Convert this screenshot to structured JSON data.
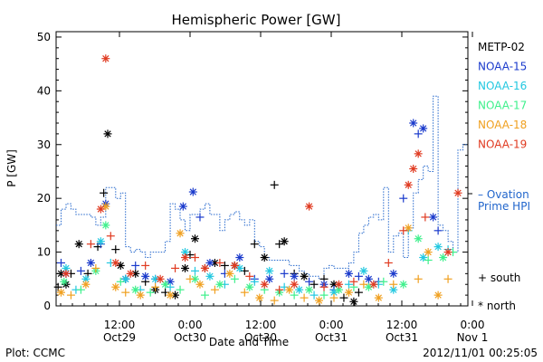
{
  "chart_data": {
    "type": "scatter",
    "title": "Hemispheric Power [GW]",
    "xlabel": "Date and Time",
    "ylabel": "P [GW]",
    "xlim_hours": [
      -2,
      25
    ],
    "ylim": [
      0,
      51
    ],
    "y_ticks": [
      0,
      10,
      20,
      30,
      40,
      50
    ],
    "x_ticks": [
      {
        "line1": "12:00",
        "line2": "Oct29"
      },
      {
        "line1": "0:00",
        "line2": "Oct30"
      },
      {
        "line1": "12:00",
        "line2": "Oct30"
      },
      {
        "line1": "0:00",
        "line2": "Oct31"
      },
      {
        "line1": "12:00",
        "line2": "Oct31"
      },
      {
        "line1": "0:00",
        "line2": "Nov 1"
      }
    ],
    "legend": {
      "placement": "right",
      "items": [
        {
          "name": "METP-02",
          "color": "#000000"
        },
        {
          "name": "NOAA-15",
          "color": "#1a3acc"
        },
        {
          "name": "NOAA-16",
          "color": "#22c8e0"
        },
        {
          "name": "NOAA-17",
          "color": "#3ef08c"
        },
        {
          "name": "NOAA-18",
          "color": "#f0a020"
        },
        {
          "name": "NOAA-19",
          "color": "#e03a20"
        }
      ],
      "ovation_label_1": "– Ovation",
      "ovation_label_2": "Prime HPI",
      "ovation_color": "#2266cc",
      "marker_south": "+ south",
      "marker_north": "* north"
    },
    "footer_left": "Plot: CCMC",
    "footer_right": "2012/11/01 00:25:05",
    "ovation_step": [
      [
        -2,
        15
      ],
      [
        -1.5,
        18
      ],
      [
        -1,
        19
      ],
      [
        -0.5,
        18
      ],
      [
        0,
        17
      ],
      [
        0.5,
        17
      ],
      [
        1,
        17
      ],
      [
        1.5,
        16.5
      ],
      [
        2,
        15
      ],
      [
        2.5,
        16.5
      ],
      [
        3,
        22
      ],
      [
        3.5,
        22
      ],
      [
        4,
        20
      ],
      [
        4.5,
        21
      ],
      [
        5,
        11
      ],
      [
        5.5,
        10
      ],
      [
        6,
        10.5
      ],
      [
        6.5,
        10
      ],
      [
        7,
        9
      ],
      [
        7.5,
        10
      ],
      [
        8,
        10
      ],
      [
        8.5,
        10
      ],
      [
        9,
        12
      ],
      [
        9.5,
        19
      ],
      [
        10,
        18
      ],
      [
        10.5,
        16
      ],
      [
        11,
        14
      ],
      [
        11.5,
        17
      ],
      [
        12,
        17
      ],
      [
        12.5,
        18
      ],
      [
        13,
        19
      ],
      [
        13.5,
        17
      ],
      [
        14,
        17
      ],
      [
        14.5,
        14
      ],
      [
        15,
        16
      ],
      [
        15.5,
        17
      ],
      [
        16,
        17.5
      ],
      [
        16.5,
        16
      ],
      [
        17,
        15
      ],
      [
        17.5,
        16
      ],
      [
        18,
        12
      ],
      [
        18.5,
        11
      ],
      [
        19,
        9
      ],
      [
        19.5,
        8.5
      ],
      [
        20,
        8.5
      ],
      [
        20.5,
        8.5
      ],
      [
        21,
        8.5
      ],
      [
        21.5,
        7.5
      ],
      [
        22,
        7.5
      ],
      [
        22.5,
        6.5
      ],
      [
        23,
        6
      ],
      [
        23.5,
        5.5
      ],
      [
        24,
        5.5
      ],
      [
        24.5,
        5
      ],
      [
        25,
        7
      ],
      [
        25.5,
        7.5
      ],
      [
        26,
        7
      ],
      [
        26.5,
        7
      ],
      [
        27,
        7
      ],
      [
        27.5,
        8
      ],
      [
        28,
        10
      ],
      [
        28.5,
        13.5
      ],
      [
        29,
        15
      ],
      [
        29.5,
        16.5
      ],
      [
        30,
        17
      ],
      [
        30.5,
        16
      ],
      [
        31,
        22
      ],
      [
        31.5,
        10
      ],
      [
        32,
        13
      ],
      [
        32.5,
        13.5
      ],
      [
        33,
        9
      ],
      [
        33.5,
        14.5
      ],
      [
        34,
        21
      ],
      [
        34.5,
        23.5
      ],
      [
        35,
        26
      ],
      [
        35.5,
        25
      ],
      [
        36,
        39
      ],
      [
        36.5,
        15
      ],
      [
        37,
        14
      ],
      [
        37.5,
        12
      ],
      [
        38,
        10
      ],
      [
        38.5,
        29
      ],
      [
        39,
        30
      ]
    ],
    "series": [
      {
        "name": "METP-02",
        "color": "#000000",
        "points": [
          [
            -1.8,
            3.5,
            "s"
          ],
          [
            -1.5,
            6,
            "n"
          ],
          [
            -1,
            4,
            "n"
          ],
          [
            -0.5,
            6,
            "s"
          ],
          [
            0.3,
            11.5,
            "n"
          ],
          [
            1.2,
            6,
            "s"
          ],
          [
            2.2,
            11,
            "s"
          ],
          [
            2.8,
            21,
            "s"
          ],
          [
            3.2,
            32,
            "n"
          ],
          [
            4,
            10.5,
            "s"
          ],
          [
            4.5,
            7.5,
            "n"
          ],
          [
            5,
            5,
            "s"
          ],
          [
            6,
            6,
            "n"
          ],
          [
            7,
            4.5,
            "s"
          ],
          [
            8,
            3,
            "n"
          ],
          [
            9,
            2.5,
            "s"
          ],
          [
            10,
            2,
            "n"
          ],
          [
            11,
            7,
            "n"
          ],
          [
            11.5,
            9.5,
            "s"
          ],
          [
            12,
            12.5,
            "n"
          ],
          [
            13,
            7,
            "s"
          ],
          [
            14,
            8,
            "n"
          ],
          [
            15,
            7.5,
            "s"
          ],
          [
            16,
            7.5,
            "n"
          ],
          [
            17,
            6.5,
            "s"
          ],
          [
            18,
            11.5,
            "s"
          ],
          [
            19,
            9,
            "n"
          ],
          [
            20,
            22.5,
            "s"
          ],
          [
            20.5,
            11.5,
            "s"
          ],
          [
            21,
            12,
            "n"
          ],
          [
            22,
            6,
            "s"
          ],
          [
            23,
            5.5,
            "n"
          ],
          [
            24,
            4,
            "s"
          ],
          [
            25,
            5,
            "s"
          ],
          [
            26,
            4,
            "n"
          ],
          [
            27,
            1.5,
            "s"
          ],
          [
            28,
            0.8,
            "n"
          ],
          [
            28.5,
            2.5,
            "s"
          ]
        ]
      },
      {
        "name": "NOAA-15",
        "color": "#1a3acc",
        "points": [
          [
            -1.5,
            8,
            "s"
          ],
          [
            -1,
            6,
            "n"
          ],
          [
            0.5,
            6.5,
            "s"
          ],
          [
            1.5,
            8,
            "n"
          ],
          [
            2.5,
            11.5,
            "s"
          ],
          [
            3,
            19,
            "n"
          ],
          [
            5,
            5,
            "n"
          ],
          [
            6,
            7.5,
            "s"
          ],
          [
            7,
            5.5,
            "n"
          ],
          [
            8,
            5,
            "s"
          ],
          [
            9.5,
            4.5,
            "n"
          ],
          [
            10.8,
            18.5,
            "n"
          ],
          [
            11.8,
            21.2,
            "n"
          ],
          [
            12.5,
            16.5,
            "s"
          ],
          [
            13.5,
            8,
            "n"
          ],
          [
            15,
            6,
            "s"
          ],
          [
            16.5,
            9,
            "n"
          ],
          [
            18,
            5,
            "s"
          ],
          [
            19.5,
            5,
            "n"
          ],
          [
            21,
            6,
            "s"
          ],
          [
            22,
            5.5,
            "n"
          ],
          [
            23.5,
            4.5,
            "s"
          ],
          [
            25,
            4,
            "n"
          ],
          [
            26,
            3,
            "s"
          ],
          [
            27.5,
            6,
            "n"
          ],
          [
            28.5,
            5.5,
            "s"
          ],
          [
            29.5,
            5,
            "n"
          ],
          [
            30.5,
            4.5,
            "s"
          ],
          [
            32,
            6,
            "n"
          ],
          [
            33,
            20,
            "s"
          ],
          [
            34,
            34,
            "n"
          ],
          [
            34.5,
            32,
            "s"
          ],
          [
            35,
            33,
            "n"
          ],
          [
            36,
            16.5,
            "n"
          ],
          [
            36.5,
            14,
            "s"
          ]
        ]
      },
      {
        "name": "NOAA-16",
        "color": "#22c8e0",
        "points": [
          [
            -1,
            7,
            "n"
          ],
          [
            0,
            3,
            "s"
          ],
          [
            1,
            5,
            "n"
          ],
          [
            2.5,
            12,
            "n"
          ],
          [
            3.5,
            8,
            "s"
          ],
          [
            5,
            5,
            "n"
          ],
          [
            6.5,
            3,
            "s"
          ],
          [
            8,
            5,
            "n"
          ],
          [
            9.5,
            3.5,
            "s"
          ],
          [
            11,
            10,
            "n"
          ],
          [
            12,
            6.5,
            "s"
          ],
          [
            13.5,
            5.5,
            "n"
          ],
          [
            15,
            4,
            "s"
          ],
          [
            16.5,
            7,
            "n"
          ],
          [
            18,
            4.5,
            "s"
          ],
          [
            19.5,
            6.5,
            "n"
          ],
          [
            21,
            3.5,
            "s"
          ],
          [
            22.5,
            3,
            "n"
          ],
          [
            24,
            2,
            "s"
          ],
          [
            26,
            2.5,
            "n"
          ],
          [
            27.5,
            4,
            "s"
          ],
          [
            29,
            6.5,
            "n"
          ],
          [
            30.5,
            4,
            "s"
          ],
          [
            32,
            3,
            "n"
          ],
          [
            33.5,
            14,
            "s"
          ],
          [
            35,
            9,
            "n"
          ],
          [
            36.5,
            11,
            "n"
          ],
          [
            37.5,
            10.5,
            "s"
          ]
        ]
      },
      {
        "name": "NOAA-17",
        "color": "#3ef08c",
        "points": [
          [
            -1.2,
            4.5,
            "n"
          ],
          [
            0.5,
            3,
            "s"
          ],
          [
            2,
            6.5,
            "n"
          ],
          [
            3,
            15,
            "n"
          ],
          [
            4.5,
            4.5,
            "s"
          ],
          [
            6,
            3,
            "n"
          ],
          [
            7.5,
            2.5,
            "s"
          ],
          [
            9,
            4,
            "n"
          ],
          [
            10.5,
            3,
            "s"
          ],
          [
            12,
            5,
            "n"
          ],
          [
            13,
            2,
            "s"
          ],
          [
            14.5,
            4,
            "n"
          ],
          [
            16,
            5,
            "s"
          ],
          [
            17.5,
            3.5,
            "n"
          ],
          [
            19,
            3,
            "s"
          ],
          [
            20.5,
            2.5,
            "n"
          ],
          [
            22,
            2,
            "s"
          ],
          [
            23.5,
            3,
            "n"
          ],
          [
            25,
            2,
            "s"
          ],
          [
            26.5,
            3,
            "n"
          ],
          [
            28,
            3.5,
            "s"
          ],
          [
            29.5,
            3.5,
            "n"
          ],
          [
            31,
            4.5,
            "s"
          ],
          [
            33,
            4,
            "n"
          ],
          [
            34.5,
            12.5,
            "n"
          ],
          [
            35.5,
            8.5,
            "s"
          ],
          [
            37,
            9,
            "n"
          ],
          [
            38,
            10,
            "s"
          ]
        ]
      },
      {
        "name": "NOAA-18",
        "color": "#f0a020",
        "points": [
          [
            -1.5,
            2.5,
            "n"
          ],
          [
            -0.5,
            2,
            "s"
          ],
          [
            1,
            4,
            "n"
          ],
          [
            2,
            7,
            "s"
          ],
          [
            3,
            18.5,
            "n"
          ],
          [
            4,
            3.5,
            "n"
          ],
          [
            5,
            2.5,
            "s"
          ],
          [
            6.5,
            2,
            "n"
          ],
          [
            8,
            3.5,
            "s"
          ],
          [
            9.5,
            2,
            "n"
          ],
          [
            10.5,
            13.5,
            "n"
          ],
          [
            11.5,
            5,
            "s"
          ],
          [
            12.5,
            4,
            "n"
          ],
          [
            14,
            3,
            "s"
          ],
          [
            15.5,
            6,
            "n"
          ],
          [
            17,
            2.5,
            "s"
          ],
          [
            18.5,
            1.5,
            "n"
          ],
          [
            20,
            1,
            "s"
          ],
          [
            21.5,
            3,
            "n"
          ],
          [
            23,
            1.5,
            "s"
          ],
          [
            24.5,
            1,
            "n"
          ],
          [
            26,
            1.5,
            "s"
          ],
          [
            27.5,
            2.5,
            "n"
          ],
          [
            29,
            4,
            "s"
          ],
          [
            30.5,
            1.5,
            "n"
          ],
          [
            32,
            4,
            "s"
          ],
          [
            33.5,
            14.5,
            "n"
          ],
          [
            34.5,
            5,
            "s"
          ],
          [
            35.5,
            10,
            "n"
          ],
          [
            36.5,
            2,
            "n"
          ],
          [
            37.5,
            5,
            "s"
          ]
        ]
      },
      {
        "name": "NOAA-19",
        "color": "#e03a20",
        "points": [
          [
            -1,
            6,
            "n"
          ],
          [
            1.5,
            11.5,
            "s"
          ],
          [
            2.5,
            18,
            "n"
          ],
          [
            3,
            46,
            "n"
          ],
          [
            3.5,
            13,
            "s"
          ],
          [
            4,
            8,
            "n"
          ],
          [
            5.5,
            6,
            "n"
          ],
          [
            7,
            7.5,
            "s"
          ],
          [
            8.5,
            5,
            "n"
          ],
          [
            10,
            7,
            "s"
          ],
          [
            11,
            9,
            "n"
          ],
          [
            12,
            9,
            "s"
          ],
          [
            13,
            7,
            "n"
          ],
          [
            14.5,
            8,
            "s"
          ],
          [
            16,
            7.5,
            "n"
          ],
          [
            17.5,
            5.5,
            "s"
          ],
          [
            19,
            4,
            "n"
          ],
          [
            20.5,
            3,
            "s"
          ],
          [
            22,
            4,
            "n"
          ],
          [
            23.5,
            18.5,
            "n"
          ],
          [
            25,
            3.5,
            "s"
          ],
          [
            26.5,
            4,
            "n"
          ],
          [
            28,
            4.5,
            "s"
          ],
          [
            30,
            4,
            "n"
          ],
          [
            31.5,
            8,
            "s"
          ],
          [
            33,
            14,
            "s"
          ],
          [
            33.5,
            22.5,
            "n"
          ],
          [
            34,
            25.5,
            "n"
          ],
          [
            34.5,
            28.3,
            "n"
          ],
          [
            35.2,
            16.5,
            "s"
          ],
          [
            37.5,
            10,
            "n"
          ],
          [
            38.5,
            21,
            "n"
          ]
        ]
      }
    ]
  }
}
